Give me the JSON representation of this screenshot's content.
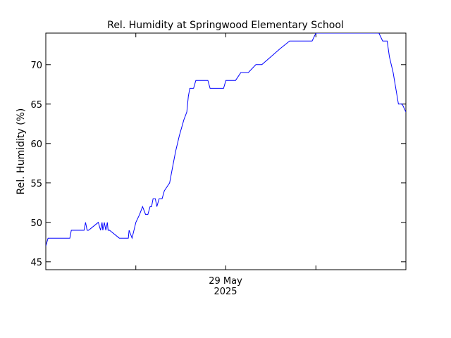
{
  "chart_data": {
    "type": "line",
    "title": "Rel. Humidity at Springwood Elementary School",
    "ylabel": "Rel. Humidity (%)",
    "xlabel": "",
    "x_tick_label_line1": "29 May",
    "x_tick_label_line2": "2025",
    "x_range_hours": [
      -24,
      24
    ],
    "x_labeled_tick_hour": 0,
    "x_minor_tick_hours": [
      -12,
      12
    ],
    "ylim": [
      44,
      74
    ],
    "y_ticks": [
      45,
      50,
      55,
      60,
      65,
      70
    ],
    "y_tick_labels": [
      "45",
      "50",
      "55",
      "60",
      "65",
      "70"
    ],
    "grid": false,
    "line_color": "#0000ff",
    "series": [
      {
        "x": [
          -24.0,
          -23.7,
          -23.6,
          -20.8,
          -20.6,
          -18.9,
          -18.7,
          -18.5,
          -18.3,
          -17.0,
          -16.7,
          -16.5,
          -16.4,
          -16.2,
          -16.0,
          -15.8,
          -15.7,
          -15.5,
          -14.2,
          -13.0,
          -12.9,
          -12.5,
          -12.0,
          -11.5,
          -11.1,
          -10.7,
          -10.4,
          -10.1,
          -9.9,
          -9.7,
          -9.4,
          -9.2,
          -8.9,
          -8.5,
          -8.2,
          -7.5,
          -7.1,
          -6.7,
          -6.2,
          -5.6,
          -5.2,
          -5.0,
          -4.8,
          -4.3,
          -4.0,
          -3.6,
          -3.3,
          -3.0,
          -2.7,
          -2.4,
          -2.1,
          -1.8,
          -1.5,
          -1.2,
          -0.9,
          -0.6,
          -0.3,
          0.0,
          0.3,
          0.6,
          0.9,
          1.3,
          2.0,
          3.0,
          4.0,
          4.2,
          4.8,
          6.0,
          7.2,
          8.5,
          10.0,
          11.5,
          12.0,
          12.5,
          14.5,
          15.0,
          15.5,
          16.0,
          17.0,
          20.4,
          20.9,
          21.5,
          21.8,
          22.3,
          23.0,
          23.5,
          24.0
        ],
        "y": [
          47,
          48,
          48,
          48,
          49,
          49,
          50,
          49,
          49,
          50,
          49,
          50,
          49,
          50,
          49,
          50,
          49,
          49,
          48,
          48,
          49,
          48,
          50,
          51,
          52,
          51,
          51,
          52,
          52,
          53,
          53,
          52,
          53,
          53,
          54,
          55,
          57,
          59,
          61,
          63,
          64,
          66,
          67,
          67,
          68,
          68,
          68,
          68,
          68,
          68,
          67,
          67,
          67,
          67,
          67,
          67,
          67,
          68,
          68,
          68,
          68,
          68,
          69,
          69,
          70,
          70,
          70,
          71,
          72,
          73,
          73,
          73,
          74,
          74,
          74,
          74,
          74,
          74,
          74,
          74,
          73,
          73,
          71,
          69,
          65,
          65,
          64
        ]
      }
    ]
  }
}
